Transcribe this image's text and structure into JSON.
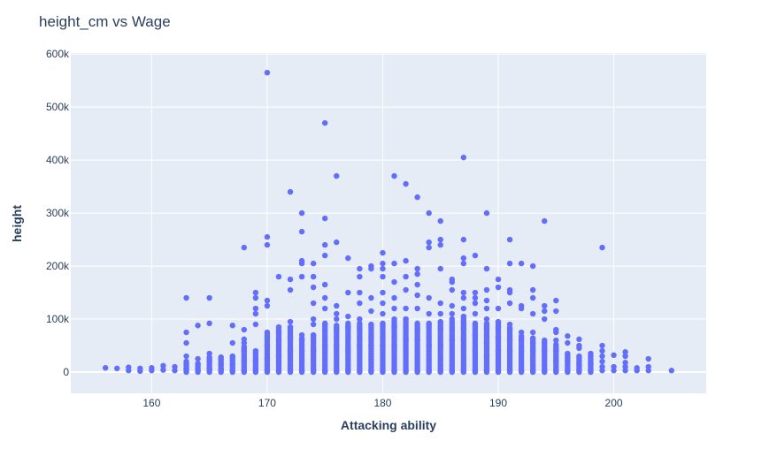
{
  "chart_data": {
    "type": "scatter",
    "title": "height_cm vs Wage",
    "xlabel": "Attacking ability",
    "ylabel": "height",
    "xlim": [
      153,
      208
    ],
    "ylim": [
      -40000,
      602000
    ],
    "x_ticks": [
      160,
      170,
      180,
      190,
      200
    ],
    "y_ticks": [
      0,
      100000,
      200000,
      300000,
      400000,
      500000,
      600000
    ],
    "x_tick_labels": [
      "160",
      "170",
      "180",
      "190",
      "200"
    ],
    "y_tick_labels": [
      "0",
      "100k",
      "200k",
      "300k",
      "400k",
      "500k",
      "600k"
    ],
    "grid": true,
    "marker_color": "#636efa",
    "plot_bg": "#e5ecf6",
    "points": [
      [
        156,
        8000
      ],
      [
        157,
        7000
      ],
      [
        158,
        3000
      ],
      [
        158,
        9000
      ],
      [
        159,
        2000
      ],
      [
        159,
        7000
      ],
      [
        160,
        3000
      ],
      [
        160,
        8000
      ],
      [
        161,
        4000
      ],
      [
        161,
        12000
      ],
      [
        162,
        3000
      ],
      [
        162,
        10000
      ],
      [
        163,
        5000
      ],
      [
        163,
        15000
      ],
      [
        163,
        30000
      ],
      [
        163,
        55000
      ],
      [
        163,
        75000
      ],
      [
        163,
        140000
      ],
      [
        164,
        3000
      ],
      [
        164,
        15000
      ],
      [
        164,
        25000
      ],
      [
        164,
        88000
      ],
      [
        165,
        5000
      ],
      [
        165,
        20000
      ],
      [
        165,
        35000
      ],
      [
        165,
        92000
      ],
      [
        165,
        140000
      ],
      [
        166,
        5000
      ],
      [
        166,
        15000
      ],
      [
        166,
        28000
      ],
      [
        167,
        3000
      ],
      [
        167,
        15000
      ],
      [
        167,
        30000
      ],
      [
        167,
        55000
      ],
      [
        167,
        88000
      ],
      [
        168,
        3000
      ],
      [
        168,
        20000
      ],
      [
        168,
        40000
      ],
      [
        168,
        55000
      ],
      [
        168,
        62000
      ],
      [
        168,
        80000
      ],
      [
        168,
        235000
      ],
      [
        169,
        3000
      ],
      [
        169,
        20000
      ],
      [
        169,
        40000
      ],
      [
        169,
        90000
      ],
      [
        169,
        110000
      ],
      [
        169,
        120000
      ],
      [
        169,
        140000
      ],
      [
        169,
        150000
      ],
      [
        170,
        3000
      ],
      [
        170,
        25000
      ],
      [
        170,
        50000
      ],
      [
        170,
        75000
      ],
      [
        170,
        125000
      ],
      [
        170,
        135000
      ],
      [
        170,
        240000
      ],
      [
        170,
        255000
      ],
      [
        170,
        565000
      ],
      [
        171,
        3000
      ],
      [
        171,
        30000
      ],
      [
        171,
        60000
      ],
      [
        171,
        75000
      ],
      [
        171,
        85000
      ],
      [
        171,
        180000
      ],
      [
        172,
        3000
      ],
      [
        172,
        40000
      ],
      [
        172,
        65000
      ],
      [
        172,
        85000
      ],
      [
        172,
        95000
      ],
      [
        172,
        155000
      ],
      [
        172,
        175000
      ],
      [
        172,
        340000
      ],
      [
        173,
        3000
      ],
      [
        173,
        40000
      ],
      [
        173,
        60000
      ],
      [
        173,
        70000
      ],
      [
        173,
        180000
      ],
      [
        173,
        205000
      ],
      [
        173,
        210000
      ],
      [
        173,
        265000
      ],
      [
        173,
        300000
      ],
      [
        174,
        3000
      ],
      [
        174,
        40000
      ],
      [
        174,
        70000
      ],
      [
        174,
        90000
      ],
      [
        174,
        100000
      ],
      [
        174,
        130000
      ],
      [
        174,
        160000
      ],
      [
        174,
        180000
      ],
      [
        174,
        205000
      ],
      [
        175,
        3000
      ],
      [
        175,
        50000
      ],
      [
        175,
        90000
      ],
      [
        175,
        120000
      ],
      [
        175,
        140000
      ],
      [
        175,
        165000
      ],
      [
        175,
        220000
      ],
      [
        175,
        240000
      ],
      [
        175,
        290000
      ],
      [
        175,
        470000
      ],
      [
        176,
        3000
      ],
      [
        176,
        50000
      ],
      [
        176,
        80000
      ],
      [
        176,
        100000
      ],
      [
        176,
        110000
      ],
      [
        176,
        125000
      ],
      [
        176,
        245000
      ],
      [
        176,
        370000
      ],
      [
        177,
        3000
      ],
      [
        177,
        40000
      ],
      [
        177,
        85000
      ],
      [
        177,
        105000
      ],
      [
        177,
        150000
      ],
      [
        177,
        215000
      ],
      [
        178,
        3000
      ],
      [
        178,
        50000
      ],
      [
        178,
        80000
      ],
      [
        178,
        100000
      ],
      [
        178,
        130000
      ],
      [
        178,
        150000
      ],
      [
        178,
        180000
      ],
      [
        178,
        195000
      ],
      [
        179,
        3000
      ],
      [
        179,
        50000
      ],
      [
        179,
        90000
      ],
      [
        179,
        115000
      ],
      [
        179,
        140000
      ],
      [
        179,
        195000
      ],
      [
        179,
        200000
      ],
      [
        180,
        3000
      ],
      [
        180,
        50000
      ],
      [
        180,
        90000
      ],
      [
        180,
        110000
      ],
      [
        180,
        130000
      ],
      [
        180,
        150000
      ],
      [
        180,
        180000
      ],
      [
        180,
        195000
      ],
      [
        180,
        205000
      ],
      [
        180,
        225000
      ],
      [
        181,
        3000
      ],
      [
        181,
        50000
      ],
      [
        181,
        85000
      ],
      [
        181,
        120000
      ],
      [
        181,
        140000
      ],
      [
        181,
        170000
      ],
      [
        181,
        205000
      ],
      [
        181,
        370000
      ],
      [
        182,
        3000
      ],
      [
        182,
        60000
      ],
      [
        182,
        100000
      ],
      [
        182,
        120000
      ],
      [
        182,
        155000
      ],
      [
        182,
        180000
      ],
      [
        182,
        210000
      ],
      [
        182,
        355000
      ],
      [
        183,
        3000
      ],
      [
        183,
        60000
      ],
      [
        183,
        80000
      ],
      [
        183,
        120000
      ],
      [
        183,
        145000
      ],
      [
        183,
        165000
      ],
      [
        183,
        185000
      ],
      [
        183,
        195000
      ],
      [
        183,
        330000
      ],
      [
        184,
        3000
      ],
      [
        184,
        50000
      ],
      [
        184,
        90000
      ],
      [
        184,
        110000
      ],
      [
        184,
        140000
      ],
      [
        184,
        235000
      ],
      [
        184,
        245000
      ],
      [
        184,
        300000
      ],
      [
        185,
        3000
      ],
      [
        185,
        50000
      ],
      [
        185,
        80000
      ],
      [
        185,
        95000
      ],
      [
        185,
        110000
      ],
      [
        185,
        130000
      ],
      [
        185,
        195000
      ],
      [
        185,
        240000
      ],
      [
        185,
        250000
      ],
      [
        185,
        285000
      ],
      [
        186,
        3000
      ],
      [
        186,
        60000
      ],
      [
        186,
        80000
      ],
      [
        186,
        110000
      ],
      [
        186,
        125000
      ],
      [
        186,
        155000
      ],
      [
        186,
        170000
      ],
      [
        186,
        175000
      ],
      [
        187,
        3000
      ],
      [
        187,
        60000
      ],
      [
        187,
        80000
      ],
      [
        187,
        95000
      ],
      [
        187,
        105000
      ],
      [
        187,
        120000
      ],
      [
        187,
        140000
      ],
      [
        187,
        150000
      ],
      [
        187,
        205000
      ],
      [
        187,
        215000
      ],
      [
        187,
        250000
      ],
      [
        187,
        405000
      ],
      [
        188,
        3000
      ],
      [
        188,
        40000
      ],
      [
        188,
        70000
      ],
      [
        188,
        90000
      ],
      [
        188,
        110000
      ],
      [
        188,
        130000
      ],
      [
        188,
        140000
      ],
      [
        188,
        150000
      ],
      [
        188,
        220000
      ],
      [
        189,
        3000
      ],
      [
        189,
        30000
      ],
      [
        189,
        55000
      ],
      [
        189,
        80000
      ],
      [
        189,
        100000
      ],
      [
        189,
        120000
      ],
      [
        189,
        135000
      ],
      [
        189,
        155000
      ],
      [
        189,
        195000
      ],
      [
        189,
        300000
      ],
      [
        190,
        3000
      ],
      [
        190,
        40000
      ],
      [
        190,
        65000
      ],
      [
        190,
        85000
      ],
      [
        190,
        95000
      ],
      [
        190,
        120000
      ],
      [
        190,
        160000
      ],
      [
        190,
        175000
      ],
      [
        191,
        3000
      ],
      [
        191,
        40000
      ],
      [
        191,
        60000
      ],
      [
        191,
        80000
      ],
      [
        191,
        90000
      ],
      [
        191,
        130000
      ],
      [
        191,
        150000
      ],
      [
        191,
        155000
      ],
      [
        191,
        205000
      ],
      [
        191,
        250000
      ],
      [
        192,
        3000
      ],
      [
        192,
        40000
      ],
      [
        192,
        60000
      ],
      [
        192,
        75000
      ],
      [
        192,
        120000
      ],
      [
        192,
        125000
      ],
      [
        192,
        205000
      ],
      [
        193,
        3000
      ],
      [
        193,
        40000
      ],
      [
        193,
        55000
      ],
      [
        193,
        75000
      ],
      [
        193,
        110000
      ],
      [
        193,
        140000
      ],
      [
        193,
        155000
      ],
      [
        193,
        200000
      ],
      [
        194,
        3000
      ],
      [
        194,
        40000
      ],
      [
        194,
        55000
      ],
      [
        194,
        100000
      ],
      [
        194,
        115000
      ],
      [
        194,
        125000
      ],
      [
        194,
        285000
      ],
      [
        195,
        3000
      ],
      [
        195,
        20000
      ],
      [
        195,
        40000
      ],
      [
        195,
        60000
      ],
      [
        195,
        75000
      ],
      [
        195,
        80000
      ],
      [
        195,
        115000
      ],
      [
        195,
        135000
      ],
      [
        196,
        3000
      ],
      [
        196,
        20000
      ],
      [
        196,
        35000
      ],
      [
        196,
        55000
      ],
      [
        196,
        68000
      ],
      [
        197,
        3000
      ],
      [
        197,
        15000
      ],
      [
        197,
        30000
      ],
      [
        197,
        45000
      ],
      [
        197,
        50000
      ],
      [
        197,
        62000
      ],
      [
        198,
        3000
      ],
      [
        198,
        15000
      ],
      [
        198,
        25000
      ],
      [
        198,
        30000
      ],
      [
        198,
        35000
      ],
      [
        199,
        3000
      ],
      [
        199,
        10000
      ],
      [
        199,
        20000
      ],
      [
        199,
        30000
      ],
      [
        199,
        40000
      ],
      [
        199,
        50000
      ],
      [
        199,
        235000
      ],
      [
        200,
        3000
      ],
      [
        200,
        10000
      ],
      [
        200,
        32000
      ],
      [
        201,
        3000
      ],
      [
        201,
        10000
      ],
      [
        201,
        18000
      ],
      [
        201,
        30000
      ],
      [
        201,
        38000
      ],
      [
        202,
        3000
      ],
      [
        202,
        8000
      ],
      [
        203,
        3000
      ],
      [
        203,
        10000
      ],
      [
        203,
        25000
      ],
      [
        205,
        3000
      ]
    ]
  }
}
